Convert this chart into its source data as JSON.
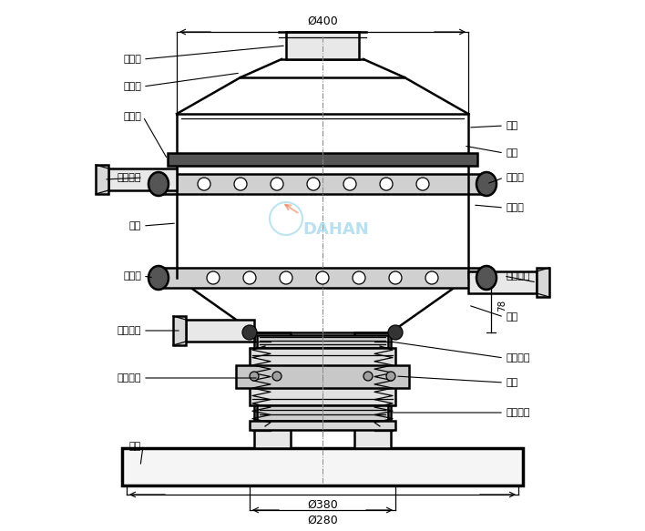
{
  "bg_color": "#ffffff",
  "line_color": "#000000",
  "dim_top": "Ø400",
  "dim_bottom1": "Ø380",
  "dim_bottom2": "Ø280",
  "watermark": "DAHAN"
}
